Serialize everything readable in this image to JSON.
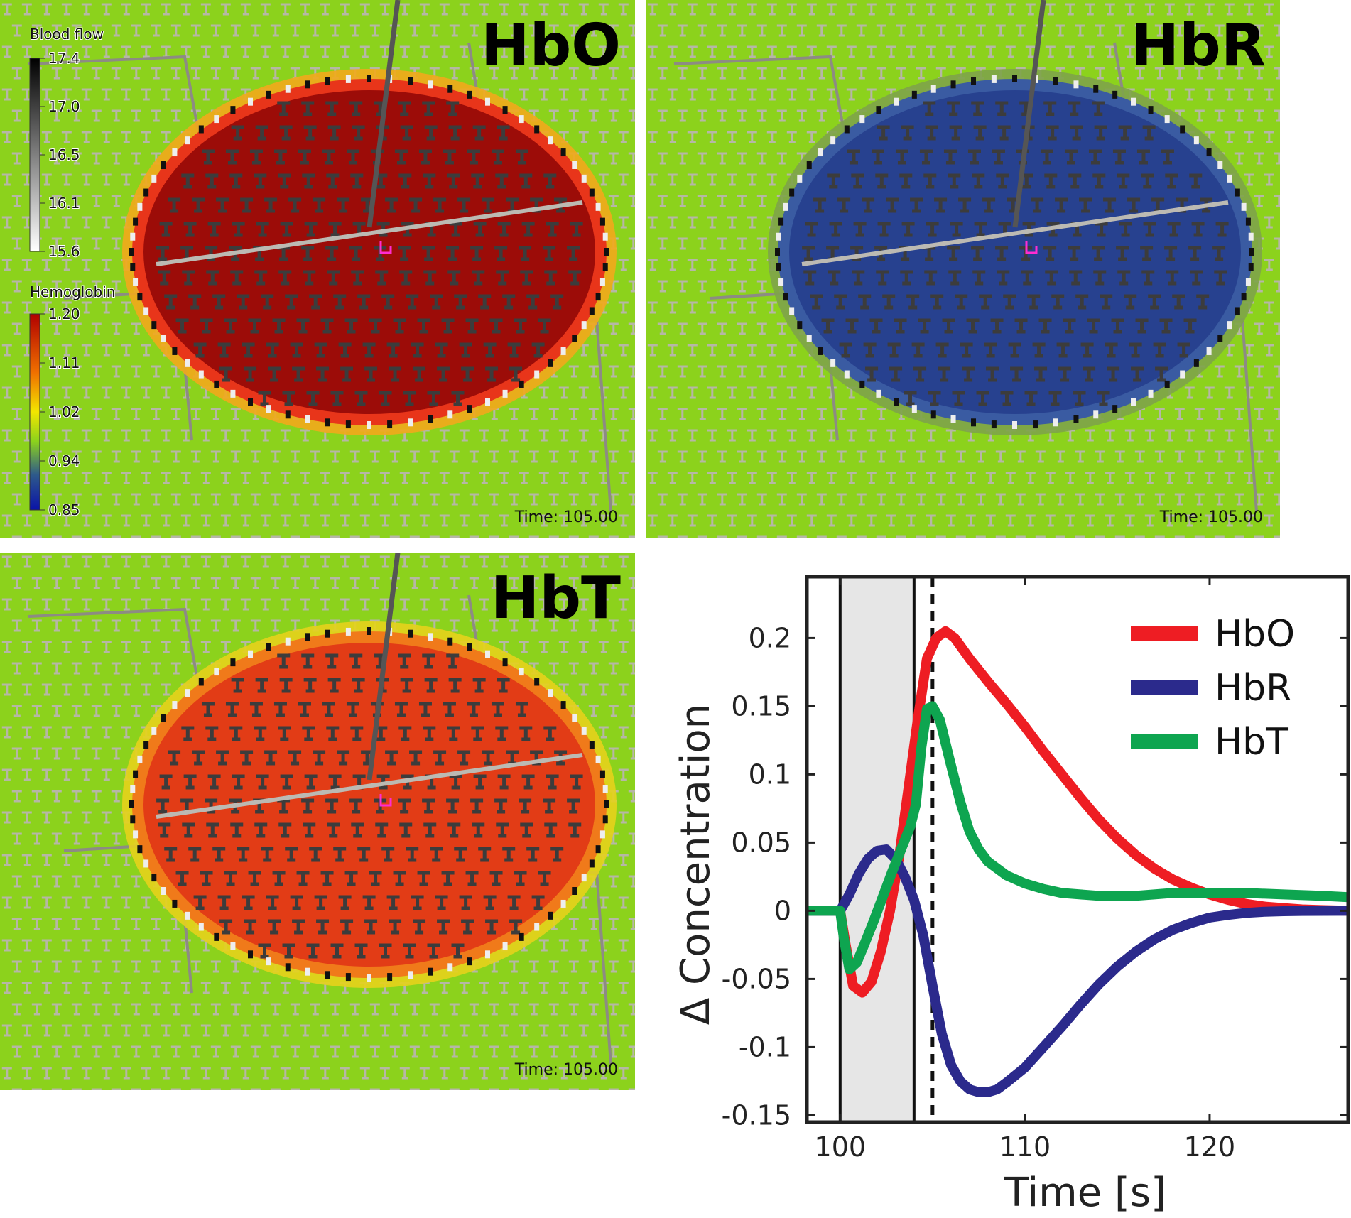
{
  "panels": [
    {
      "id": "hbo",
      "title": "HbO",
      "time_label": "Time: 105.00",
      "disk_color": "#9c0c08",
      "rim_color": "#e8351a",
      "outer_color": "#f2a81c"
    },
    {
      "id": "hbr",
      "title": "HbR",
      "time_label": "Time: 105.00",
      "disk_color": "#27418f",
      "rim_color": "#3a5ba2",
      "outer_color": "#7ea34a"
    },
    {
      "id": "hbt",
      "title": "HbT",
      "time_label": "Time: 105.00",
      "disk_color": "#e23c16",
      "rim_color": "#f07a1a",
      "outer_color": "#e6d11c"
    }
  ],
  "colorbars": {
    "blood_flow": {
      "title": "Blood flow",
      "ticks": [
        "17.4",
        "17.0",
        "16.5",
        "16.1",
        "15.6"
      ]
    },
    "hemoglobin": {
      "title": "Hemoglobin",
      "ticks": [
        "1.20",
        "1.11",
        "1.02",
        "0.94",
        "0.85"
      ]
    }
  },
  "colors": {
    "background_green": "#8cd21c",
    "vessel_grey": "#b9b6ae",
    "probe_magenta": "#ff2cd2"
  },
  "chart_data": {
    "type": "line",
    "xlabel": "Time [s]",
    "ylabel": "Δ Concentration",
    "xlim": [
      98.2,
      127.5
    ],
    "ylim": [
      -0.155,
      0.245
    ],
    "xticks": [
      100,
      110,
      120
    ],
    "yticks": [
      0.2,
      0.15,
      0.1,
      0.05,
      0,
      -0.05,
      -0.1,
      -0.15
    ],
    "xtick_labels": [
      "100",
      "110",
      "120"
    ],
    "ytick_labels": [
      "0.2",
      "0.15",
      "0.1",
      "0.05",
      "0",
      "-0.05",
      "-0.1",
      "-0.15"
    ],
    "stimulus_window": [
      100,
      104
    ],
    "dashed_marker": 105,
    "legend_position": "top-right",
    "series": [
      {
        "name": "HbO",
        "color": "#ee1d23",
        "x": [
          98.2,
          100,
          100.3,
          100.7,
          101.2,
          101.7,
          102.2,
          102.7,
          103.2,
          103.7,
          104.2,
          104.7,
          105.2,
          105.7,
          106.2,
          107,
          108,
          109,
          110,
          111,
          112,
          113,
          114,
          115,
          116,
          117,
          118,
          119,
          120,
          121,
          122,
          123,
          124,
          125,
          126,
          127.5
        ],
        "y": [
          0,
          0,
          -0.025,
          -0.055,
          -0.06,
          -0.052,
          -0.03,
          0,
          0.04,
          0.09,
          0.14,
          0.185,
          0.2,
          0.205,
          0.2,
          0.185,
          0.168,
          0.152,
          0.135,
          0.117,
          0.1,
          0.083,
          0.067,
          0.053,
          0.041,
          0.031,
          0.023,
          0.017,
          0.012,
          0.008,
          0.005,
          0.003,
          0.002,
          0.001,
          0.0005,
          0
        ]
      },
      {
        "name": "HbR",
        "color": "#2b2a8c",
        "x": [
          98.2,
          100,
          100.5,
          101,
          101.5,
          102,
          102.5,
          103,
          103.5,
          104,
          104.5,
          105,
          105.5,
          106,
          106.5,
          107,
          107.5,
          108,
          108.5,
          109,
          110,
          111,
          112,
          113,
          114,
          115,
          116,
          117,
          118,
          119,
          120,
          121,
          122,
          123,
          124,
          125,
          127.5
        ],
        "y": [
          0,
          0,
          0.012,
          0.027,
          0.038,
          0.044,
          0.045,
          0.038,
          0.025,
          0.008,
          -0.018,
          -0.055,
          -0.09,
          -0.113,
          -0.125,
          -0.131,
          -0.133,
          -0.133,
          -0.131,
          -0.126,
          -0.115,
          -0.1,
          -0.085,
          -0.069,
          -0.054,
          -0.041,
          -0.03,
          -0.021,
          -0.014,
          -0.009,
          -0.005,
          -0.003,
          -0.0015,
          -0.0007,
          -0.0003,
          -0.0001,
          0
        ]
      },
      {
        "name": "HbT",
        "color": "#0ea550",
        "x": [
          98.2,
          100,
          100.2,
          100.5,
          100.9,
          101.3,
          101.8,
          102.3,
          102.8,
          103.3,
          103.8,
          104.1,
          104.4,
          104.7,
          105,
          105.4,
          105.9,
          106.5,
          107,
          107.5,
          108,
          109,
          110,
          111,
          112,
          113,
          114,
          115,
          116,
          117,
          118,
          119,
          120,
          122,
          124,
          126,
          127.5
        ],
        "y": [
          0,
          0,
          -0.02,
          -0.043,
          -0.038,
          -0.025,
          -0.008,
          0.01,
          0.028,
          0.045,
          0.062,
          0.078,
          0.12,
          0.148,
          0.15,
          0.14,
          0.112,
          0.08,
          0.058,
          0.045,
          0.036,
          0.026,
          0.02,
          0.016,
          0.013,
          0.012,
          0.011,
          0.011,
          0.011,
          0.012,
          0.013,
          0.013,
          0.013,
          0.013,
          0.012,
          0.011,
          0.01
        ]
      }
    ]
  }
}
